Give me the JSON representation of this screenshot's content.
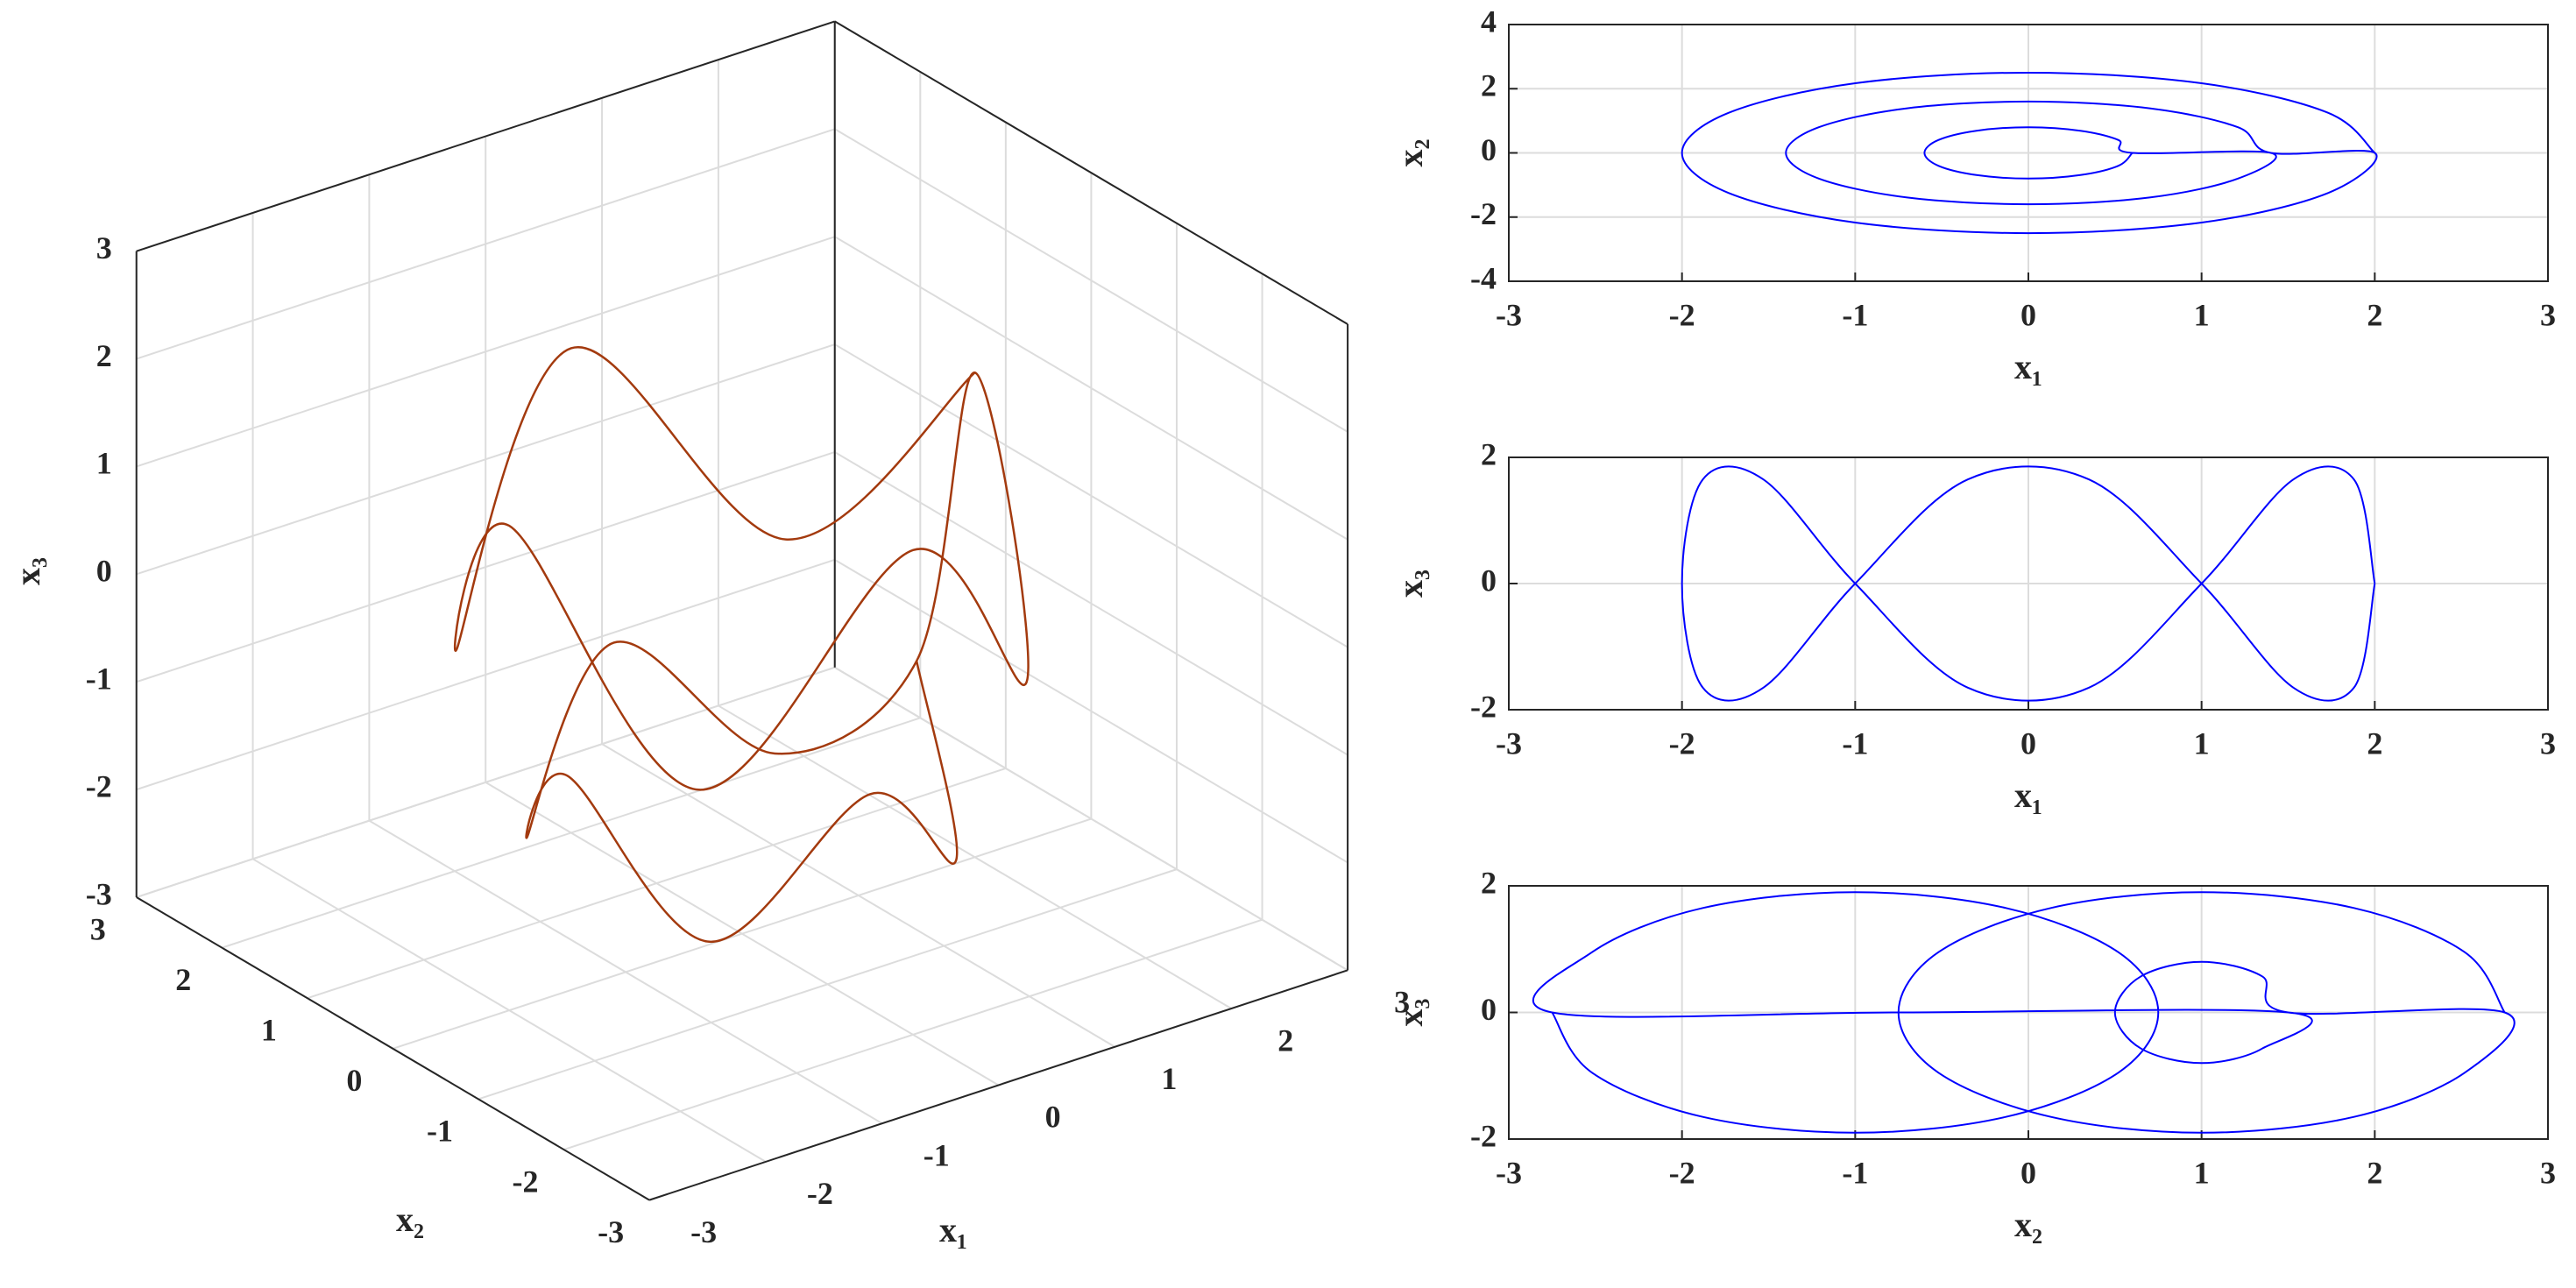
{
  "chart_data": [
    {
      "type": "line3d",
      "xlabel": "x₁",
      "ylabel": "x₂",
      "zlabel": "x₃",
      "xlim": [
        -3,
        3
      ],
      "ylim": [
        -3,
        3
      ],
      "zlim": [
        -3,
        3
      ],
      "xticks": [
        -3,
        -2,
        -1,
        0,
        1,
        2,
        3
      ],
      "yticks": [
        -3,
        -2,
        -1,
        0,
        1,
        2,
        3
      ],
      "zticks": [
        -3,
        -2,
        -1,
        0,
        1,
        2,
        3
      ],
      "grid": true,
      "series": [
        {
          "color": "#a33a0e",
          "x": [
            2,
            1.41,
            0,
            -1.41,
            -2,
            -1.41,
            0,
            1.41,
            2,
            1.5,
            1.06,
            0,
            -1.06,
            -1.5,
            -1.06,
            0,
            1.06,
            1.5
          ],
          "y": [
            0,
            1.41,
            2,
            1.41,
            0,
            -1.41,
            -2,
            -1.41,
            0,
            0,
            1.06,
            1.5,
            1.06,
            0,
            -1.06,
            -1.5,
            -1.06,
            0
          ],
          "z": [
            1.5,
            -0.5,
            1.5,
            -0.5,
            1.5,
            -0.5,
            1.5,
            -0.5,
            1.5,
            -1,
            -2.2,
            -1,
            -2.2,
            -1,
            -2.2,
            -1,
            -2.2,
            -1
          ]
        }
      ]
    },
    {
      "type": "line",
      "xlabel": "x₁",
      "ylabel": "x₂",
      "xlim": [
        -3,
        3
      ],
      "ylim": [
        -4,
        4
      ],
      "xticks": [
        -3,
        -2,
        -1,
        0,
        1,
        2,
        3
      ],
      "yticks": [
        -4,
        -2,
        0,
        2,
        4
      ],
      "grid": true,
      "x": [
        2,
        1.73,
        1,
        0,
        -1,
        -1.73,
        -2,
        -1.73,
        -1,
        0,
        1,
        1.73,
        2,
        1.4,
        1.21,
        0.7,
        0,
        -0.7,
        -1.21,
        -1.4,
        -1.21,
        -0.7,
        0,
        0.7,
        1.21,
        1.4,
        0.6,
        0.52,
        0.3,
        0,
        -0.3,
        -0.52,
        -0.6,
        -0.52,
        -0.3,
        0,
        0.3,
        0.52,
        0.6
      ],
      "series": [
        {
          "color": "#0000ff",
          "values": [
            0,
            1.25,
            2.17,
            2.5,
            2.17,
            1.25,
            0,
            -1.25,
            -2.17,
            -2.5,
            -2.17,
            -1.25,
            0,
            0,
            0.8,
            1.39,
            1.6,
            1.39,
            0.8,
            0,
            -0.8,
            -1.39,
            -1.6,
            -1.39,
            -0.8,
            0,
            0,
            0.4,
            0.69,
            0.8,
            0.69,
            0.4,
            0,
            -0.4,
            -0.69,
            -0.8,
            -0.69,
            -0.4,
            0
          ]
        }
      ]
    },
    {
      "type": "line",
      "xlabel": "x₁",
      "ylabel": "x₃",
      "xlim": [
        -3,
        3
      ],
      "ylim": [
        -2,
        2
      ],
      "xticks": [
        -3,
        -2,
        -1,
        0,
        1,
        2,
        3
      ],
      "yticks": [
        -2,
        0,
        2
      ],
      "grid": true,
      "x": [
        2,
        1.88,
        1.53,
        1,
        0.35,
        -0.35,
        -1,
        -1.53,
        -1.88,
        -2,
        -1.88,
        -1.53,
        -1,
        -0.35,
        0.35,
        1,
        1.53,
        1.88,
        2
      ],
      "series": [
        {
          "color": "#0000ff",
          "values": [
            0,
            1.65,
            1.65,
            0,
            -1.65,
            -1.65,
            0,
            1.65,
            1.65,
            0,
            -1.65,
            -1.65,
            0,
            1.65,
            1.65,
            0,
            -1.65,
            -1.65,
            0
          ]
        }
      ]
    },
    {
      "type": "line",
      "xlabel": "x₂",
      "ylabel": "x₃",
      "xlim": [
        -3,
        3
      ],
      "ylim": [
        -2,
        2
      ],
      "xticks": [
        -3,
        -2,
        -1,
        0,
        1,
        2,
        3
      ],
      "yticks": [
        -2,
        0,
        2
      ],
      "grid": true,
      "x": [
        2.75,
        2.52,
        1.88,
        1,
        0.13,
        -0.52,
        -0.75,
        -0.52,
        0.13,
        1,
        1.88,
        2.52,
        2.75,
        1.5,
        1.35,
        1,
        0.65,
        0.5,
        0.65,
        1,
        1.35,
        1.5,
        -0.75,
        -2.75,
        -2.52,
        -1.88,
        -1,
        -0.13,
        0.52,
        0.75,
        0.52,
        -0.13,
        -1,
        -1.88,
        -2.52,
        -2.75
      ],
      "series": [
        {
          "color": "#0000ff",
          "values": [
            0,
            0.95,
            1.65,
            1.9,
            1.65,
            0.95,
            0,
            -0.95,
            -1.65,
            -1.9,
            -1.65,
            -0.95,
            0,
            0,
            0.57,
            0.8,
            0.57,
            0,
            -0.57,
            -0.8,
            -0.57,
            0,
            0,
            0,
            0.95,
            1.65,
            1.9,
            1.65,
            0.95,
            0,
            -0.95,
            -1.65,
            -1.9,
            -1.65,
            -0.95,
            0
          ]
        }
      ]
    }
  ]
}
